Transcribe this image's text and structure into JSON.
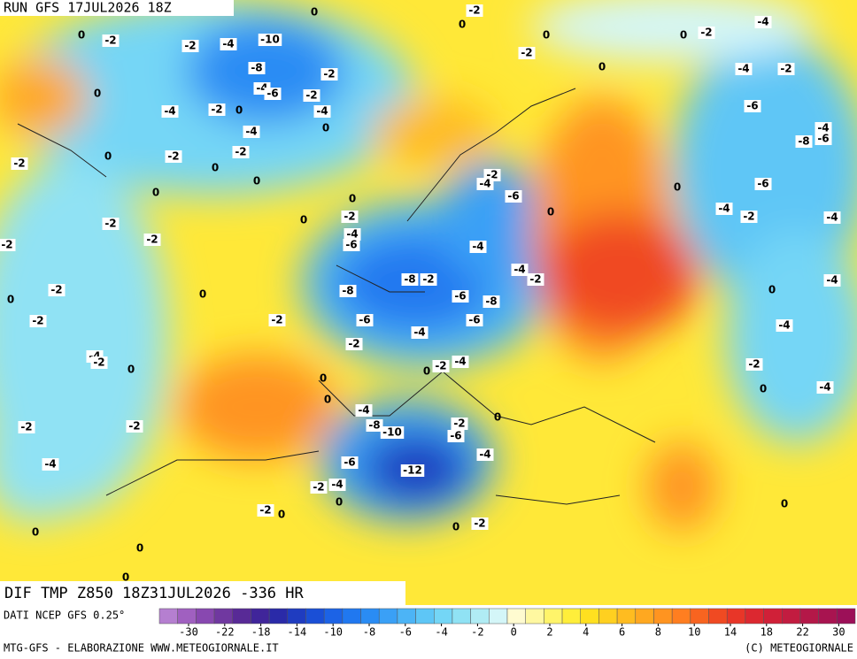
{
  "header": {
    "title": "RUN GFS 17JUL2026 18Z"
  },
  "map": {
    "title": "DIF TMP Z850 18Z31JUL2026 -336 HR",
    "contour_labels": [
      0,
      -2,
      0,
      -2,
      -2,
      -4,
      -10,
      0,
      0,
      0,
      -2,
      -4,
      -8,
      -2,
      -4,
      -6,
      -2,
      -4,
      0,
      -4,
      -2,
      0,
      0,
      -2,
      -4,
      -2,
      -6,
      -4,
      -8,
      -6,
      -4,
      -2,
      0,
      0,
      -2,
      0,
      0,
      -2,
      0,
      0,
      -2,
      -4,
      -6,
      0,
      0,
      -6,
      -4,
      -2,
      -4,
      -2,
      -2,
      0,
      -2,
      -4,
      -6,
      -2,
      -4,
      -4,
      -2,
      -8,
      -2,
      -8,
      0,
      -2,
      0,
      -6,
      -8,
      0,
      -4,
      -2,
      -6,
      -2,
      -6,
      -4,
      -2,
      -4,
      -4,
      -2,
      0,
      -2,
      -4,
      0,
      0,
      0,
      -2,
      0,
      -4,
      -4,
      -8,
      -10,
      -2,
      -6,
      0,
      -2,
      -2,
      -4,
      -6,
      -12,
      -4,
      -2,
      -4,
      0,
      -2,
      0,
      0,
      -2,
      0,
      0,
      0,
      0
    ]
  },
  "legend": {
    "source": "DATI NCEP GFS 0.25°",
    "colors": [
      "#b57fd0",
      "#a060c0",
      "#8848b0",
      "#7038a0",
      "#582a96",
      "#40259a",
      "#2a2aa8",
      "#1f3cc0",
      "#1a4fd6",
      "#1c63e6",
      "#2078f0",
      "#2a8cf4",
      "#3aa0f6",
      "#4cb4f6",
      "#5ec6f6",
      "#74d6f6",
      "#90e2f4",
      "#b0ecf4",
      "#d4f6f8",
      "#fffbd0",
      "#fff8a0",
      "#fff46a",
      "#ffee3a",
      "#ffe020",
      "#ffd020",
      "#ffbc20",
      "#ffa820",
      "#ff9420",
      "#ff7e20",
      "#f86420",
      "#f04a22",
      "#e83628",
      "#dc2830",
      "#d02038",
      "#c21c40",
      "#b41848",
      "#a81450",
      "#9c1058"
    ],
    "ticks": [
      -30,
      -22,
      -18,
      -14,
      -10,
      -8,
      -6,
      -4,
      -2,
      0,
      2,
      4,
      6,
      8,
      10,
      14,
      18,
      22,
      30
    ]
  },
  "footer": {
    "left": "MTG-GFS - ELABORAZIONE WWW.METEOGIORNALE.IT",
    "right": "(C) METEOGIORNALE"
  }
}
